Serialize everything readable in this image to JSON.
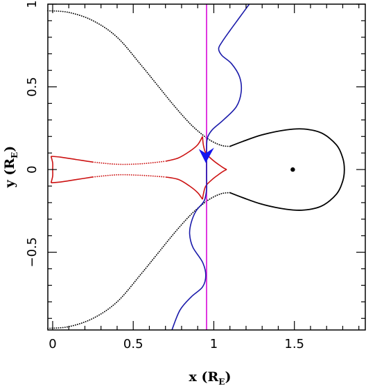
{
  "chart_data": {
    "type": "line",
    "title": "",
    "xlabel": {
      "main": "x (R",
      "sub": "E",
      "close": ")"
    },
    "ylabel": {
      "main": "y (R",
      "sub": "E",
      "close": ")"
    },
    "xlim": [
      -0.03,
      1.94
    ],
    "ylim": [
      -0.97,
      1.0
    ],
    "xticks": [
      {
        "value": 0,
        "label": "0"
      },
      {
        "value": 0.5,
        "label": "0.5"
      },
      {
        "value": 1,
        "label": "1"
      },
      {
        "value": 1.5,
        "label": "1.5"
      }
    ],
    "yticks": [
      {
        "value": -0.5,
        "label": "−0.5"
      },
      {
        "value": 0,
        "label": "0"
      },
      {
        "value": 0.5,
        "label": "0.5"
      },
      {
        "value": 1,
        "label": "1"
      }
    ],
    "grid": false,
    "legend": "none",
    "colors": {
      "critical_curve": "#000000",
      "caustic": "#cc1111",
      "trajectory": "#1a1aaa",
      "source_line": "#dd22dd",
      "arrow": "#1515ee"
    },
    "point": {
      "x": 1.49,
      "y": 0.0
    },
    "vertical_line": {
      "x": 0.955
    },
    "arrow": {
      "x": 0.95,
      "y": 0.04
    },
    "critical_curve_right": [
      [
        1.1,
        0.14
      ],
      [
        1.18,
        0.17
      ],
      [
        1.3,
        0.21
      ],
      [
        1.45,
        0.24
      ],
      [
        1.56,
        0.245
      ],
      [
        1.67,
        0.22
      ],
      [
        1.76,
        0.15
      ],
      [
        1.8,
        0.07
      ],
      [
        1.81,
        0.0
      ],
      [
        1.8,
        -0.07
      ],
      [
        1.76,
        -0.15
      ],
      [
        1.67,
        -0.22
      ],
      [
        1.56,
        -0.245
      ],
      [
        1.45,
        -0.24
      ],
      [
        1.3,
        -0.21
      ],
      [
        1.18,
        -0.17
      ],
      [
        1.1,
        -0.14
      ]
    ],
    "critical_curve_upper": [
      [
        -0.03,
        0.96
      ],
      [
        0.1,
        0.95
      ],
      [
        0.25,
        0.9
      ],
      [
        0.4,
        0.8
      ],
      [
        0.55,
        0.63
      ],
      [
        0.65,
        0.51
      ],
      [
        0.75,
        0.39
      ],
      [
        0.85,
        0.28
      ],
      [
        0.93,
        0.21
      ],
      [
        0.99,
        0.17
      ],
      [
        1.05,
        0.145
      ],
      [
        1.1,
        0.14
      ]
    ],
    "critical_curve_lower": [
      [
        -0.03,
        -0.96
      ],
      [
        0.1,
        -0.95
      ],
      [
        0.25,
        -0.9
      ],
      [
        0.4,
        -0.8
      ],
      [
        0.55,
        -0.63
      ],
      [
        0.65,
        -0.51
      ],
      [
        0.75,
        -0.39
      ],
      [
        0.85,
        -0.28
      ],
      [
        0.93,
        -0.21
      ],
      [
        0.99,
        -0.17
      ],
      [
        1.05,
        -0.145
      ],
      [
        1.1,
        -0.14
      ]
    ],
    "caustic_solid": [
      [
        [
          -0.01,
          0.08
        ],
        [
          0.05,
          0.075
        ],
        [
          0.15,
          0.06
        ],
        [
          0.25,
          0.045
        ]
      ],
      [
        [
          0.7,
          0.05
        ],
        [
          0.78,
          0.07
        ],
        [
          0.85,
          0.11
        ],
        [
          0.9,
          0.15
        ],
        [
          0.93,
          0.2
        ]
      ],
      [
        [
          0.93,
          0.2
        ],
        [
          0.935,
          0.15
        ],
        [
          0.95,
          0.1
        ],
        [
          0.99,
          0.06
        ],
        [
          1.03,
          0.03
        ],
        [
          1.06,
          0.01
        ],
        [
          1.08,
          0.0
        ]
      ],
      [
        [
          1.08,
          0.0
        ],
        [
          1.06,
          -0.01
        ],
        [
          1.03,
          -0.03
        ],
        [
          0.99,
          -0.06
        ],
        [
          0.95,
          -0.1
        ],
        [
          0.935,
          -0.15
        ],
        [
          0.93,
          -0.18
        ]
      ],
      [
        [
          0.93,
          -0.18
        ],
        [
          0.9,
          -0.14
        ],
        [
          0.85,
          -0.1
        ],
        [
          0.78,
          -0.06
        ],
        [
          0.7,
          -0.045
        ]
      ],
      [
        [
          0.25,
          -0.045
        ],
        [
          0.15,
          -0.06
        ],
        [
          0.05,
          -0.075
        ],
        [
          -0.01,
          -0.08
        ]
      ],
      [
        [
          -0.01,
          0.08
        ],
        [
          0.0,
          0.04
        ],
        [
          0.0,
          0.0
        ],
        [
          0.0,
          -0.04
        ],
        [
          -0.01,
          -0.08
        ]
      ]
    ],
    "caustic_dotted": [
      [
        [
          0.25,
          0.045
        ],
        [
          0.4,
          0.032
        ],
        [
          0.55,
          0.035
        ],
        [
          0.7,
          0.05
        ]
      ],
      [
        [
          0.25,
          -0.045
        ],
        [
          0.4,
          -0.032
        ],
        [
          0.55,
          -0.035
        ],
        [
          0.7,
          -0.045
        ]
      ]
    ],
    "trajectory": [
      [
        1.22,
        1.0
      ],
      [
        1.16,
        0.92
      ],
      [
        1.1,
        0.84
      ],
      [
        1.05,
        0.77
      ],
      [
        1.03,
        0.73
      ],
      [
        1.05,
        0.69
      ],
      [
        1.11,
        0.64
      ],
      [
        1.16,
        0.56
      ],
      [
        1.17,
        0.47
      ],
      [
        1.14,
        0.38
      ],
      [
        1.06,
        0.3
      ],
      [
        0.99,
        0.24
      ],
      [
        0.96,
        0.19
      ],
      [
        0.955,
        0.12
      ],
      [
        0.955,
        0.05
      ],
      [
        0.955,
        0.0
      ],
      [
        0.955,
        -0.05
      ],
      [
        0.955,
        -0.12
      ],
      [
        0.94,
        -0.19
      ],
      [
        0.89,
        -0.25
      ],
      [
        0.86,
        -0.32
      ],
      [
        0.85,
        -0.39
      ],
      [
        0.87,
        -0.47
      ],
      [
        0.93,
        -0.56
      ],
      [
        0.95,
        -0.64
      ],
      [
        0.93,
        -0.71
      ],
      [
        0.86,
        -0.77
      ],
      [
        0.79,
        -0.85
      ],
      [
        0.74,
        -0.97
      ]
    ]
  }
}
